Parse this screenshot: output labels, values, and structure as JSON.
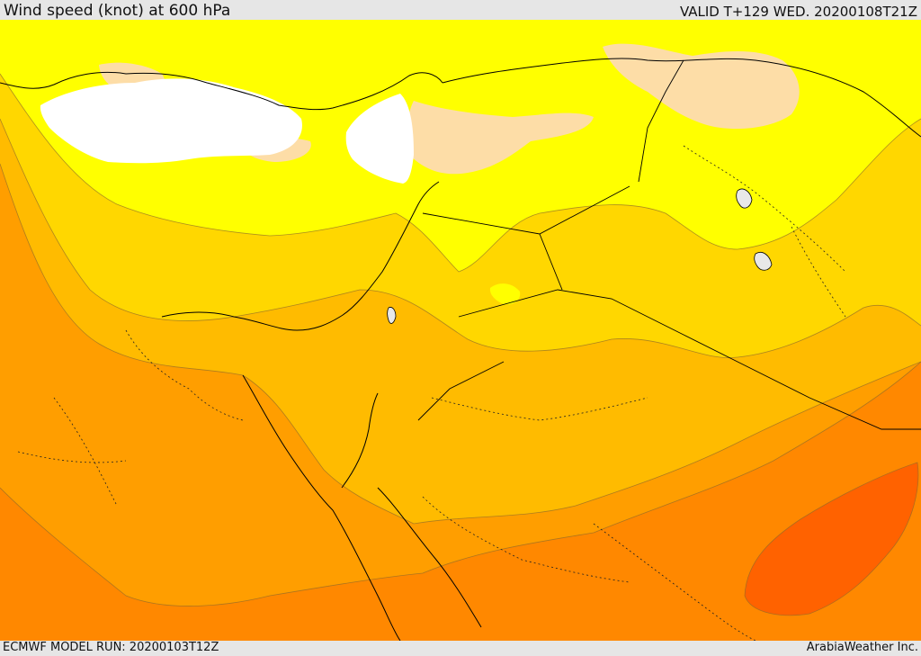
{
  "header": {
    "title": "Wind speed (knot) at 600 hPa",
    "valid": "VALID T+129 WED. 20200108T21Z"
  },
  "footer": {
    "model_run": "ECMWF MODEL RUN: 20200103T12Z",
    "credit": "ArabiaWeather Inc."
  },
  "colors": {
    "band_1": "#ffffff",
    "band_2": "#fddda7",
    "band_3": "#ffff00",
    "band_4": "#ffd700",
    "band_5": "#ffbb00",
    "band_6": "#ff9e00",
    "band_7": "#ff8800",
    "band_8": "#ff6200"
  }
}
